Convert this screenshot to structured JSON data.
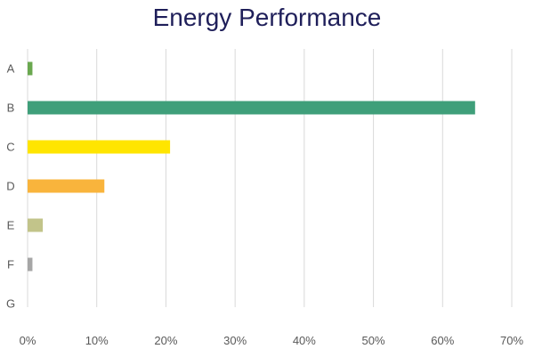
{
  "chart_data": {
    "type": "bar",
    "orientation": "horizontal",
    "title": "Energy Performance",
    "xlabel": "",
    "ylabel": "",
    "categories": [
      "A",
      "B",
      "C",
      "D",
      "E",
      "F",
      "G"
    ],
    "values": [
      0.7,
      64.7,
      20.6,
      11.1,
      2.2,
      0.7,
      0
    ],
    "colors": [
      "#6aa84f",
      "#3f9f7a",
      "#ffe500",
      "#f9b43c",
      "#c2c48a",
      "#a6a6a6",
      "#a6a6a6"
    ],
    "xlim": [
      0,
      70
    ],
    "xticks": [
      "0%",
      "10%",
      "20%",
      "30%",
      "40%",
      "50%",
      "60%",
      "70%"
    ],
    "grid": true,
    "legend": "none"
  }
}
